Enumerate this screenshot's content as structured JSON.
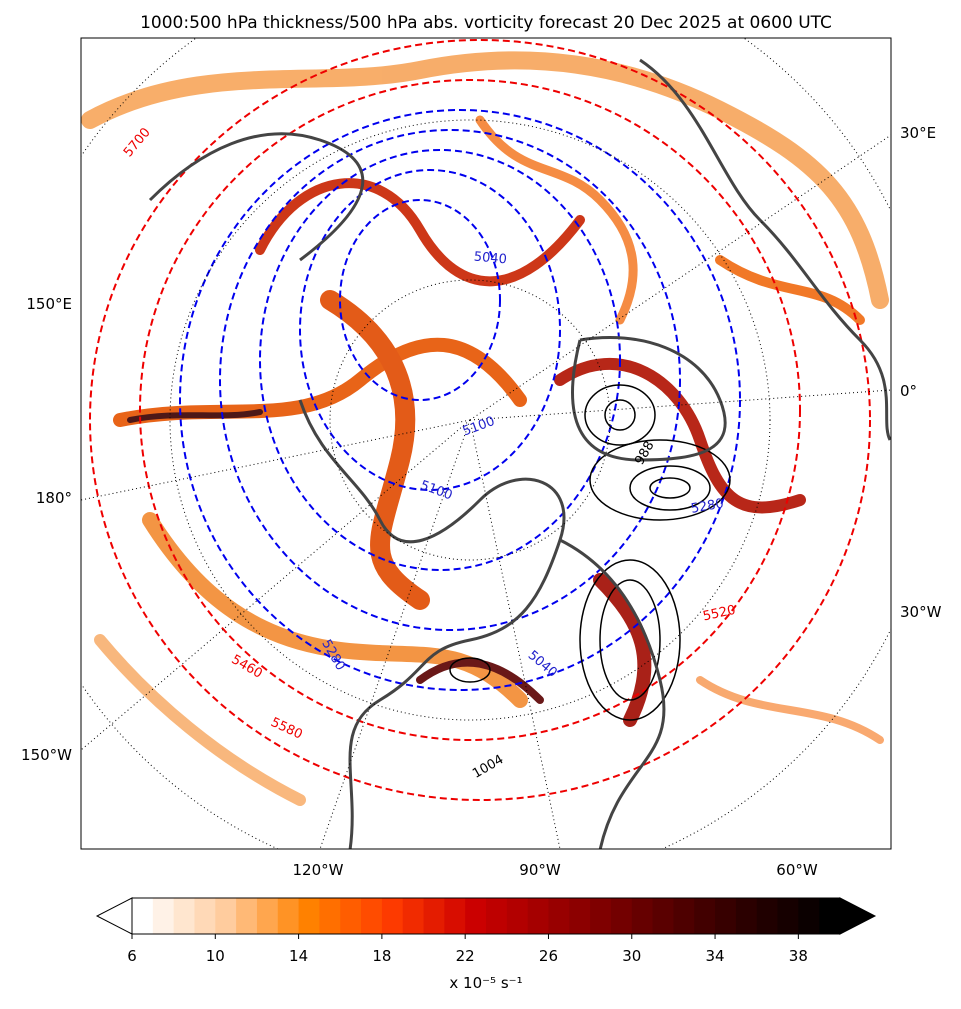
{
  "title": "1000:500 hPa thickness/500 hPa abs. vorticity forecast 20 Dec 2025 at 0600 UTC",
  "map": {
    "graticule_labels": [
      "30°E",
      "150°E",
      "0°",
      "180°",
      "30°W",
      "150°W",
      "120°W",
      "90°W",
      "60°W"
    ],
    "thickness_labels_red": [
      "5700",
      "5520",
      "5460",
      "5580"
    ],
    "thickness_labels_blue": [
      "5040",
      "5100",
      "5100",
      "5280",
      "5040",
      "5280"
    ],
    "pressure_labels": [
      "1004",
      "988"
    ]
  },
  "colorbar": {
    "lim": [
      6,
      40
    ],
    "ticks": [
      6,
      10,
      14,
      18,
      22,
      26,
      30,
      34,
      38
    ],
    "levels": [
      6,
      7,
      8,
      9,
      10,
      11,
      12,
      13,
      14,
      15,
      16,
      17,
      18,
      19,
      20,
      21,
      22,
      23,
      24,
      25,
      26,
      27,
      28,
      29,
      30,
      31,
      32,
      33,
      34,
      35,
      36,
      37,
      38,
      39,
      40
    ],
    "label": "x 10⁻⁵ s⁻¹"
  }
}
